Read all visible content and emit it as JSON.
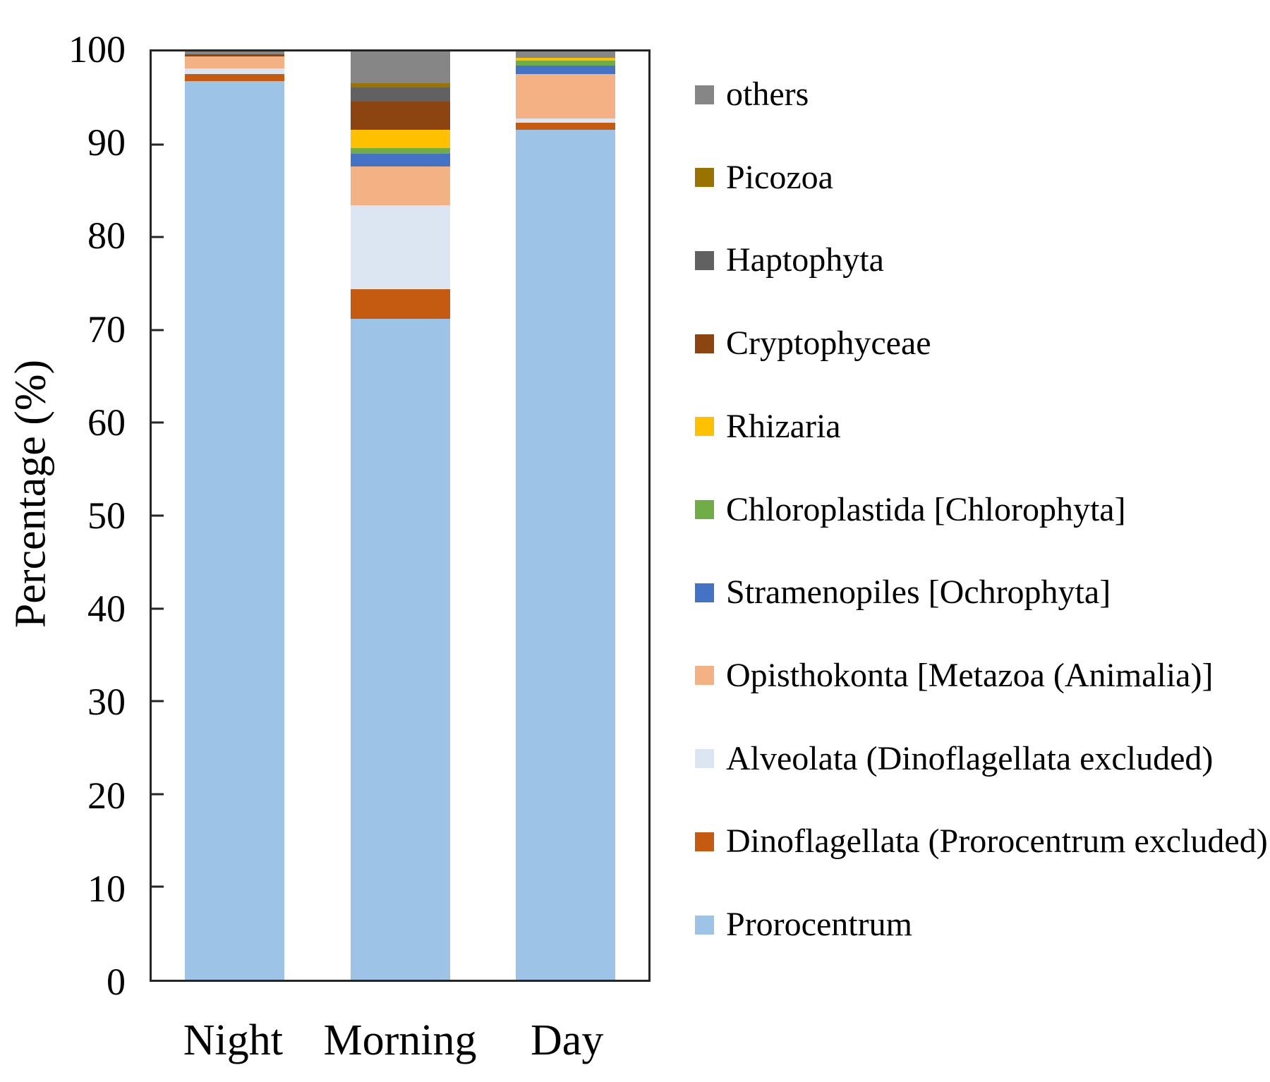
{
  "chart_data": {
    "type": "bar",
    "stacked": true,
    "title": "",
    "xlabel": "",
    "ylabel": "Percentage (%)",
    "ylim": [
      0,
      100
    ],
    "yticks": [
      0,
      10,
      20,
      30,
      40,
      50,
      60,
      70,
      80,
      90,
      100
    ],
    "grid": false,
    "legend_position": "right",
    "legend_order": "reverse-of-stack-top-to-bottom",
    "categories": [
      "Night",
      "Morning",
      "Day"
    ],
    "series": [
      {
        "name": "Prorocentrum",
        "color": "#9DC3E6",
        "values": [
          96.8,
          71.2,
          91.6
        ]
      },
      {
        "name": "Dinoflagellata (Prorocentrum excluded)",
        "color": "#C55A11",
        "values": [
          0.8,
          3.2,
          0.75
        ]
      },
      {
        "name": "Alveolata (Dinoflagellata excluded)",
        "color": "#DCE6F2",
        "values": [
          0.6,
          9.0,
          0.45
        ]
      },
      {
        "name": "Opisthokonta [Metazoa (Animalia)]",
        "color": "#F4B183",
        "values": [
          1.3,
          4.2,
          4.8
        ]
      },
      {
        "name": "Stramenopiles [Ochrophyta]",
        "color": "#4472C4",
        "values": [
          0,
          1.4,
          0.85
        ]
      },
      {
        "name": "Chloroplastida [Chlorophyta]",
        "color": "#70AD47",
        "values": [
          0,
          0.6,
          0.6
        ]
      },
      {
        "name": "Rhizaria",
        "color": "#FFC000",
        "values": [
          0,
          2.0,
          0.25
        ]
      },
      {
        "name": "Cryptophyceae",
        "color": "#8C4511",
        "values": [
          0.2,
          3.0,
          0
        ]
      },
      {
        "name": "Haptophyta",
        "color": "#616161",
        "values": [
          0,
          1.5,
          0
        ]
      },
      {
        "name": "Picozoa",
        "color": "#997300",
        "values": [
          0,
          0.5,
          0
        ]
      },
      {
        "name": "others",
        "color": "#868686",
        "values": [
          0.3,
          3.4,
          0.7
        ]
      }
    ],
    "layout": {
      "legend_first_center_y": 134,
      "legend_spacing_y": 117.7
    }
  }
}
